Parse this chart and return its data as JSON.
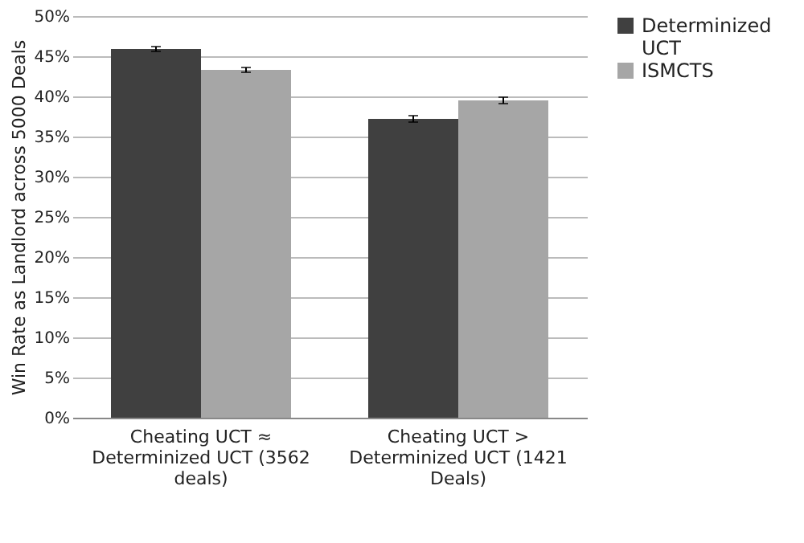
{
  "chart_data": {
    "type": "bar",
    "ylabel": "Win Rate as Landlord across 5000 Deals",
    "categories": [
      "Cheating UCT ≈ Determinized UCT (3562 deals)",
      "Cheating UCT > Determinized UCT (1421 Deals)"
    ],
    "series": [
      {
        "name": "Determinized UCT",
        "color": "#404040",
        "values": [
          45.9,
          37.2
        ],
        "errors": [
          0.3,
          0.4
        ]
      },
      {
        "name": "ISMCTS",
        "color": "#a6a6a6",
        "values": [
          43.3,
          39.5
        ],
        "errors": [
          0.3,
          0.4
        ]
      }
    ],
    "ylim": [
      0,
      50
    ],
    "yticks": [
      {
        "value": 0,
        "label": "0%"
      },
      {
        "value": 5,
        "label": "5%"
      },
      {
        "value": 10,
        "label": "10%"
      },
      {
        "value": 15,
        "label": "15%"
      },
      {
        "value": 20,
        "label": "20%"
      },
      {
        "value": 25,
        "label": "25%"
      },
      {
        "value": 30,
        "label": "30%"
      },
      {
        "value": 35,
        "label": "35%"
      },
      {
        "value": 40,
        "label": "40%"
      },
      {
        "value": 45,
        "label": "45%"
      },
      {
        "value": 50,
        "label": "50%"
      }
    ],
    "grid": "y",
    "legend": "right"
  }
}
